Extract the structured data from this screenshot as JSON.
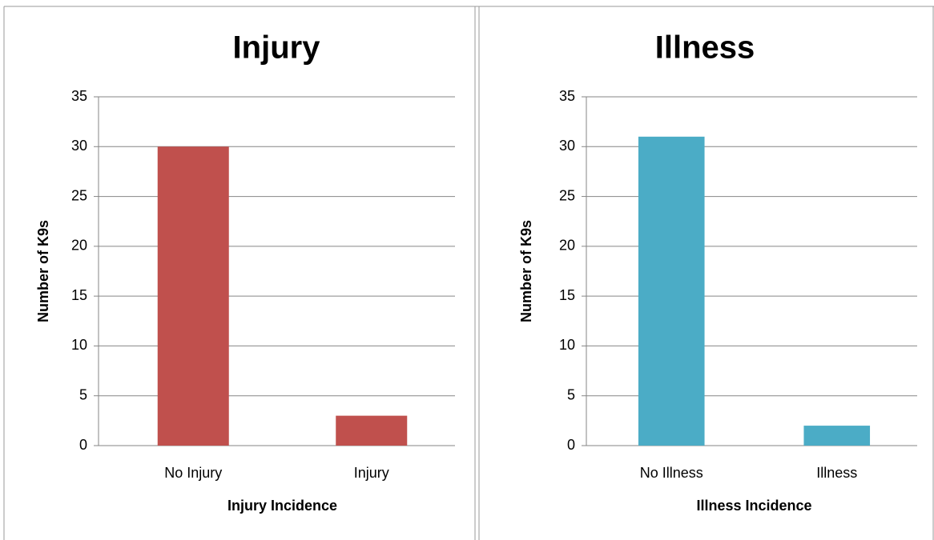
{
  "chart_data": [
    {
      "type": "bar",
      "title": "Injury",
      "x_label": "Injury Incidence",
      "y_label": "Number of K9s",
      "categories": [
        "No Injury",
        "Injury"
      ],
      "values": [
        30,
        3
      ],
      "color": "#c0504d",
      "ylim": [
        0,
        35
      ],
      "yticks": [
        0,
        5,
        10,
        15,
        20,
        25,
        30,
        35
      ],
      "grid": true
    },
    {
      "type": "bar",
      "title": "Illness",
      "x_label": "Illness Incidence",
      "y_label": "Number of K9s",
      "categories": [
        "No Illness",
        "Illness"
      ],
      "values": [
        31,
        2
      ],
      "color": "#4bacc6",
      "ylim": [
        0,
        35
      ],
      "yticks": [
        0,
        5,
        10,
        15,
        20,
        25,
        30,
        35
      ],
      "grid": true
    }
  ]
}
